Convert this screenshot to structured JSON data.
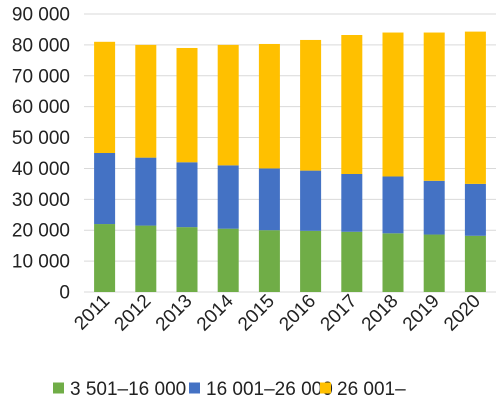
{
  "chart_data": {
    "type": "bar",
    "stacked": true,
    "categories": [
      "2011",
      "2012",
      "2013",
      "2014",
      "2015",
      "2016",
      "2017",
      "2018",
      "2019",
      "2020"
    ],
    "series": [
      {
        "name": "3 501–16 000",
        "color": "#70ad47",
        "values": [
          22000,
          21500,
          21000,
          20500,
          20000,
          19800,
          19500,
          19000,
          18600,
          18200
        ]
      },
      {
        "name": "16 001–26 000",
        "color": "#4472c4",
        "values": [
          23000,
          22000,
          21000,
          20500,
          20000,
          19500,
          18700,
          18400,
          17400,
          16800
        ]
      },
      {
        "name": "26 001–",
        "color": "#ffc000",
        "values": [
          36000,
          36500,
          37000,
          39000,
          40300,
          42300,
          45000,
          46600,
          48000,
          49300
        ]
      }
    ],
    "y_ticks": [
      "0",
      "10 000",
      "20 000",
      "30 000",
      "40 000",
      "50 000",
      "60 000",
      "70 000",
      "80 000",
      "90 000"
    ],
    "ylim": [
      0,
      90000
    ],
    "y_step": 10000,
    "grid": true,
    "legend_position": "bottom",
    "title": "",
    "xlabel": "",
    "ylabel": ""
  }
}
